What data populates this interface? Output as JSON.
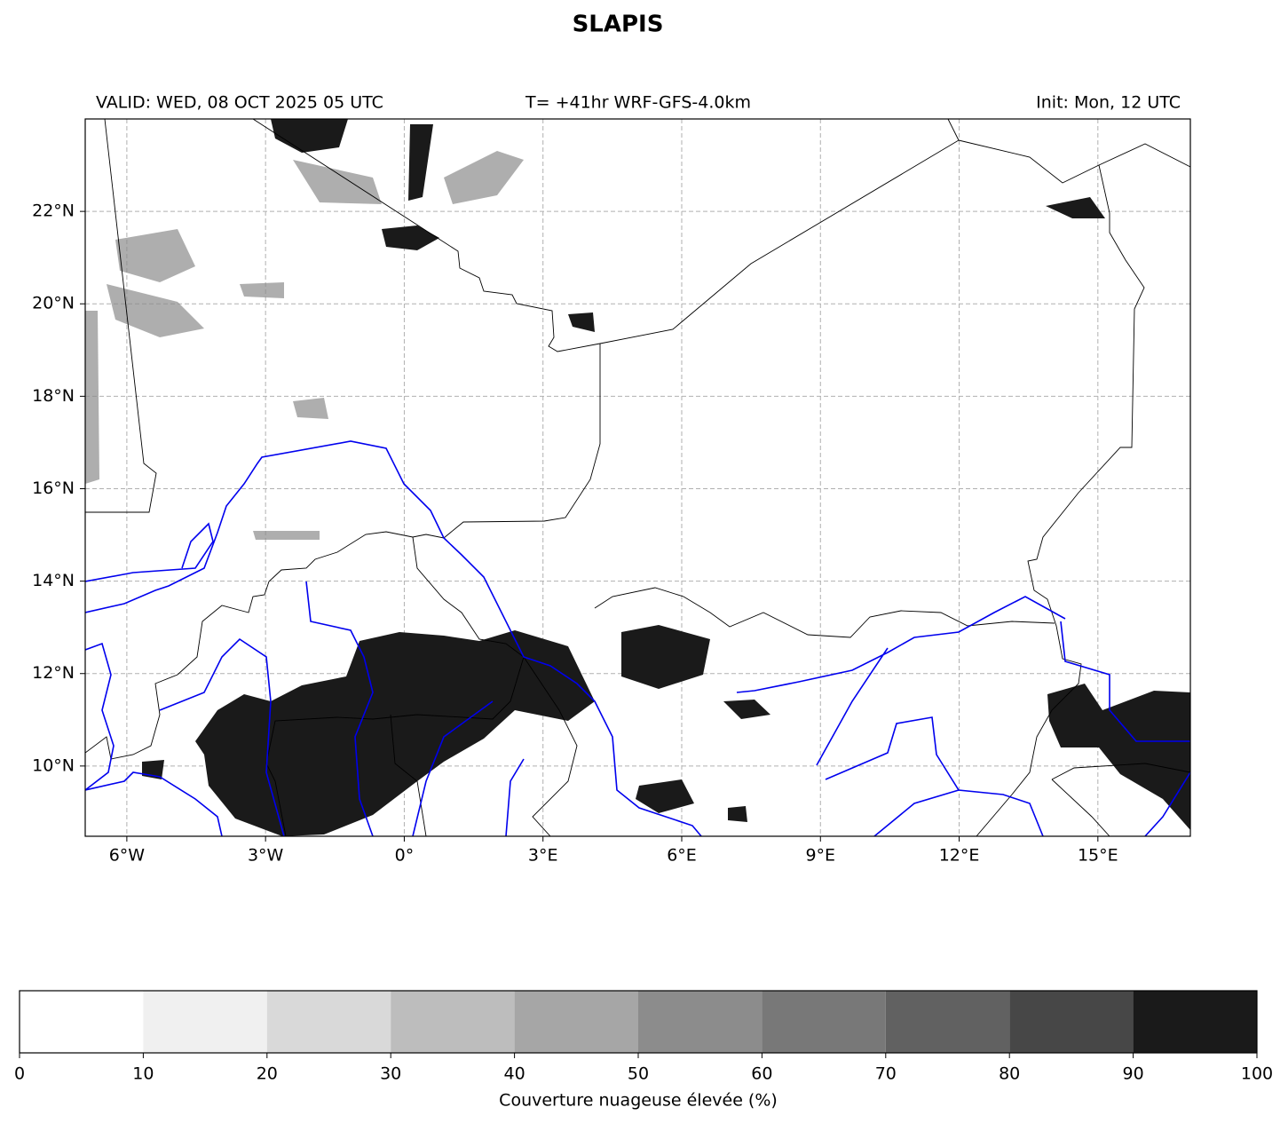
{
  "title": "SLAPIS",
  "header": {
    "valid": "VALID: WED, 08 OCT 2025 05 UTC",
    "run": "T= +41hr WRF-GFS-4.0km",
    "init": "Init: Mon, 12 UTC"
  },
  "map": {
    "xlim": [
      -6.9,
      17
    ],
    "ylim": [
      8.48,
      24
    ],
    "grid": true,
    "xticks": [
      {
        "value": -6,
        "label": "6°W"
      },
      {
        "value": -3,
        "label": "3°W"
      },
      {
        "value": 0,
        "label": "0°"
      },
      {
        "value": 3,
        "label": "3°E"
      },
      {
        "value": 6,
        "label": "6°E"
      },
      {
        "value": 9,
        "label": "9°E"
      },
      {
        "value": 12,
        "label": "12°E"
      },
      {
        "value": 15,
        "label": "15°E"
      }
    ],
    "yticks": [
      {
        "value": 10,
        "label": "10°N"
      },
      {
        "value": 12,
        "label": "12°N"
      },
      {
        "value": 14,
        "label": "14°N"
      },
      {
        "value": 16,
        "label": "16°N"
      },
      {
        "value": 18,
        "label": "18°N"
      },
      {
        "value": 20,
        "label": "20°N"
      },
      {
        "value": 22,
        "label": "22°N"
      }
    ]
  },
  "colorbar": {
    "label": "Couverture nuageuse élevée (%)",
    "levels": [
      0,
      10,
      20,
      30,
      40,
      50,
      60,
      70,
      80,
      90,
      100
    ],
    "colors": [
      "#ffffff",
      "#f0f0f0",
      "#d9d9d9",
      "#bdbdbd",
      "#a6a6a6",
      "#8c8c8c",
      "#787878",
      "#616161",
      "#474747",
      "#1a1a1a"
    ]
  }
}
